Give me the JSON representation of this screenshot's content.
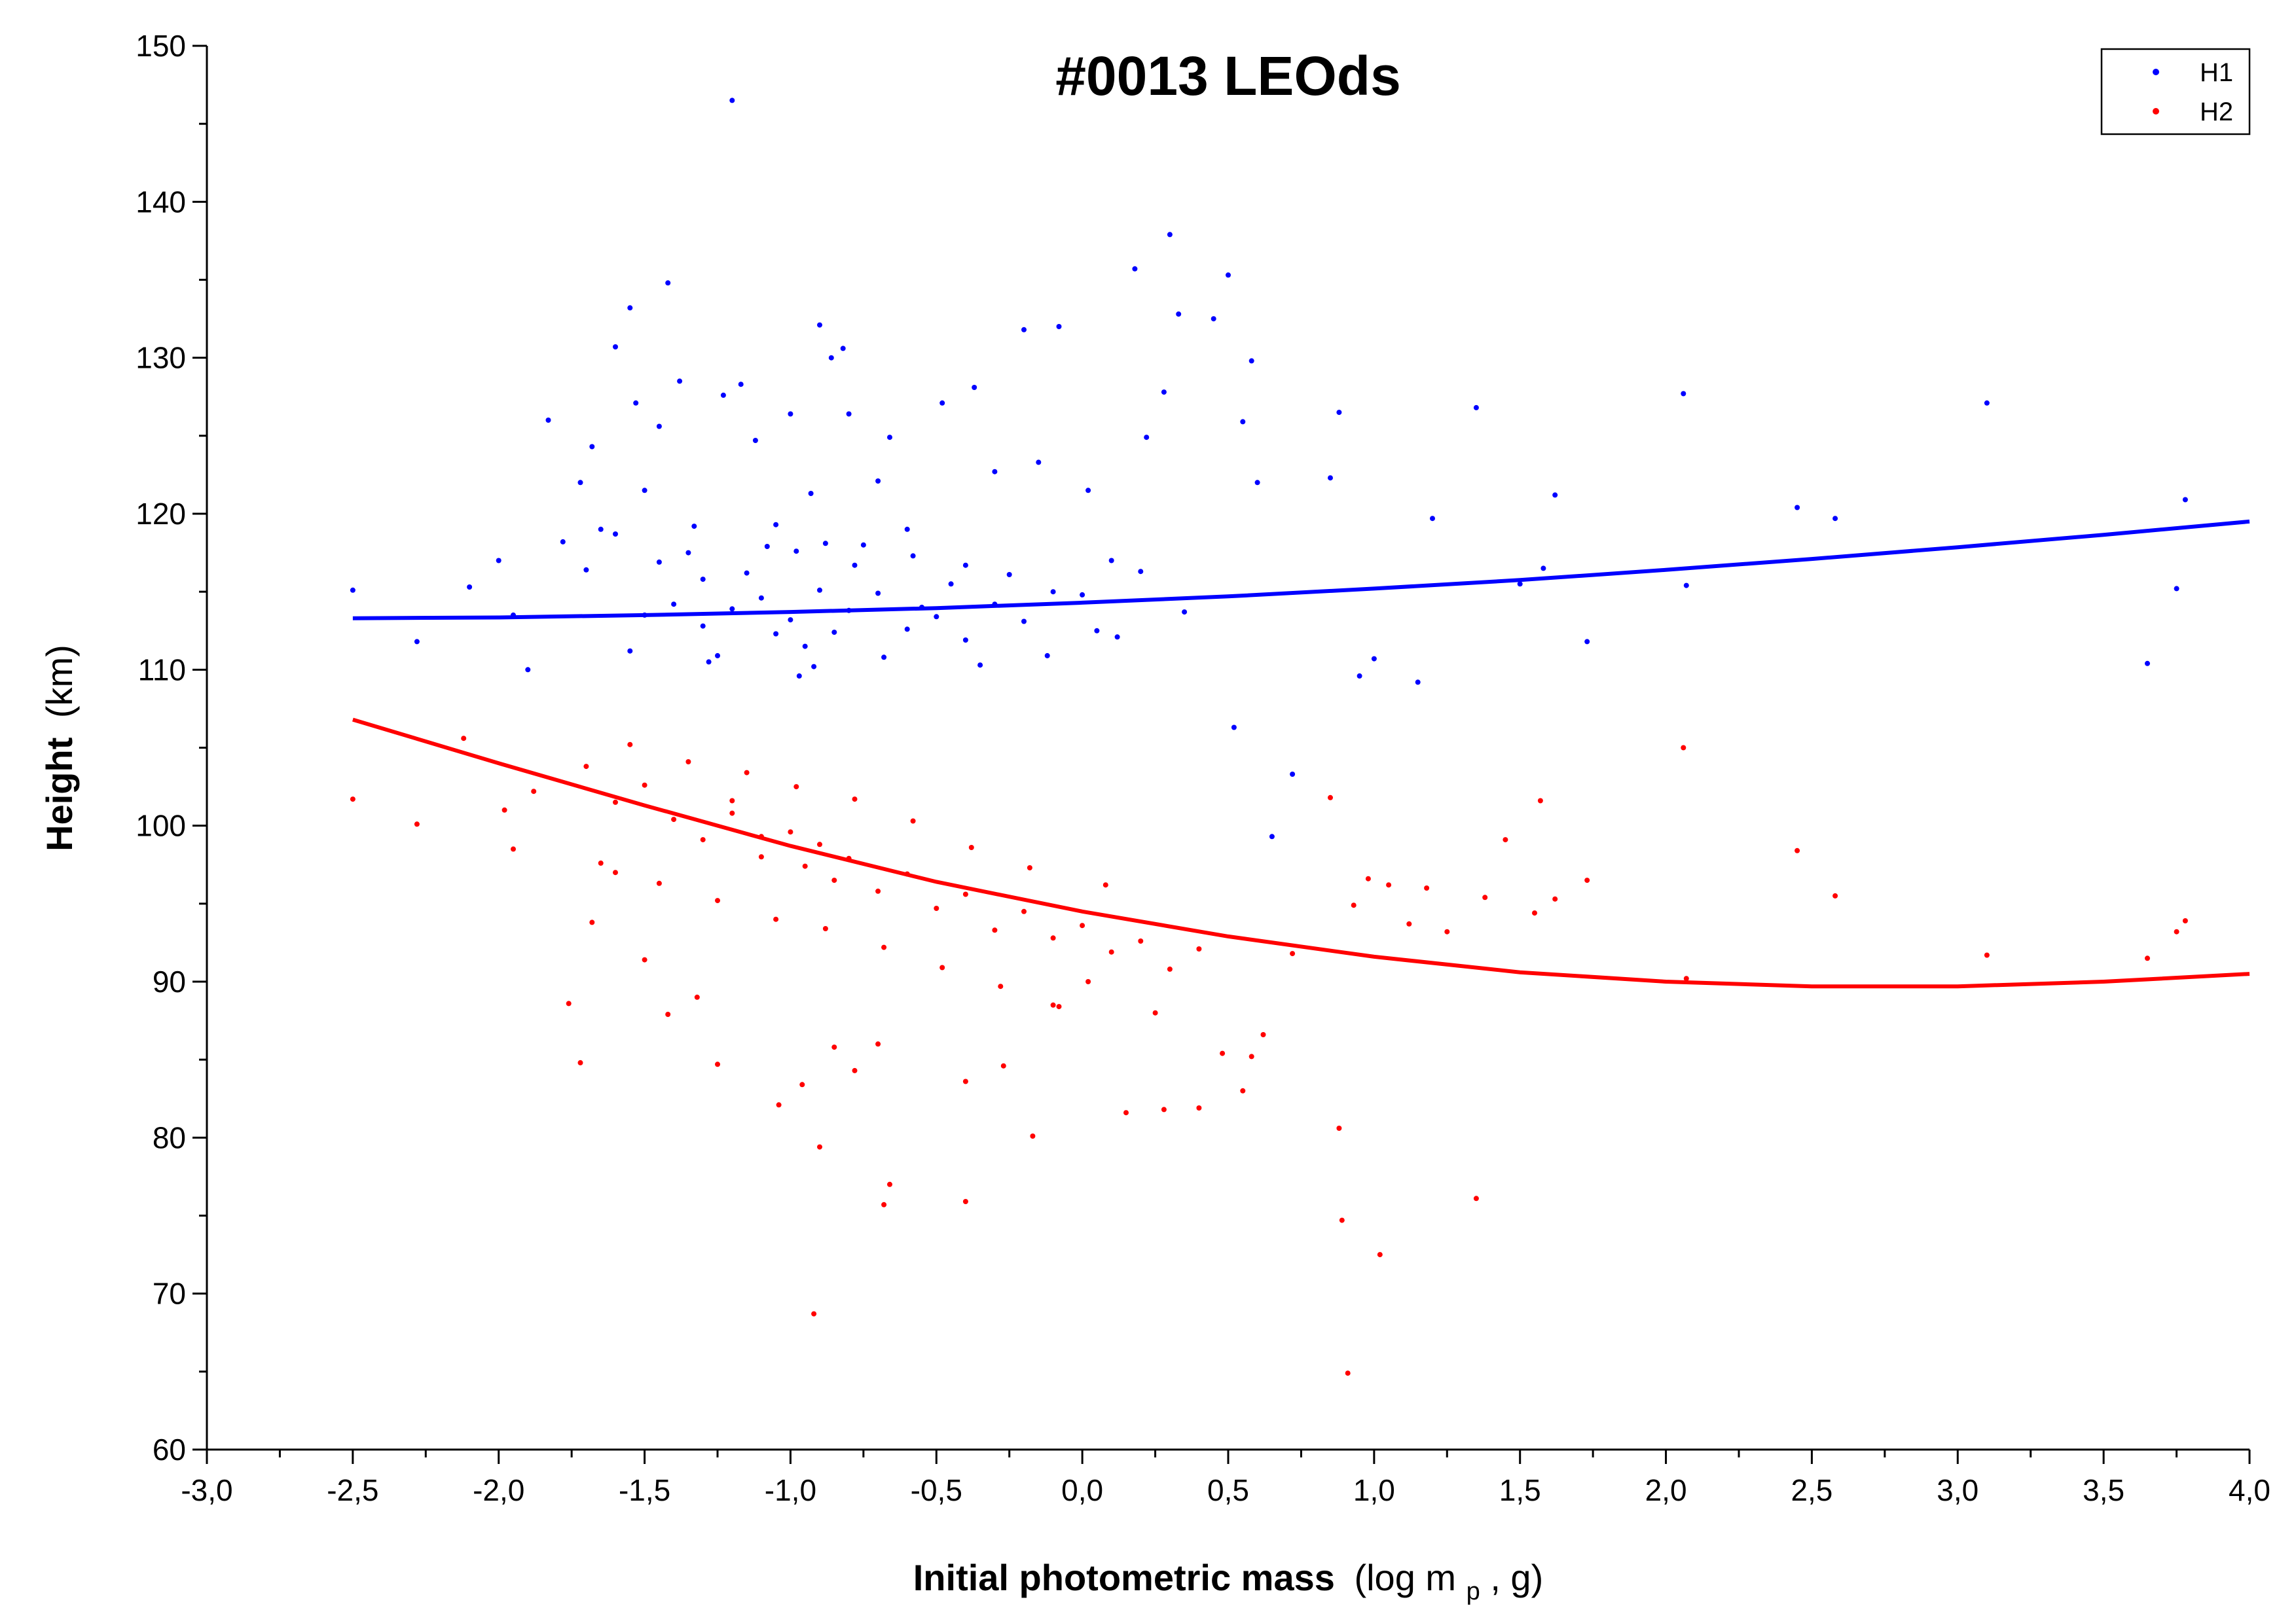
{
  "chart_data": {
    "type": "scatter",
    "title": "#0013 LEOds",
    "xlabel_bold": "Initial photometric mass",
    "xlabel_rest": "(log m",
    "xlabel_sub": "p",
    "xlabel_end": ", g)",
    "ylabel_bold": "Height",
    "ylabel_rest": "(km)",
    "xlim": [
      -3.0,
      4.0
    ],
    "ylim": [
      60,
      150
    ],
    "x_ticks": [
      -3.0,
      -2.5,
      -2.0,
      -1.5,
      -1.0,
      -0.5,
      0.0,
      0.5,
      1.0,
      1.5,
      2.0,
      2.5,
      3.0,
      3.5,
      4.0
    ],
    "x_tick_labels": [
      "-3,0",
      "-2,5",
      "-2,0",
      "-1,5",
      "-1,0",
      "-0,5",
      "0,0",
      "0,5",
      "1,0",
      "1,5",
      "2,0",
      "2,5",
      "3,0",
      "3,5",
      "4,0"
    ],
    "y_ticks": [
      60,
      70,
      80,
      90,
      100,
      110,
      120,
      130,
      140,
      150
    ],
    "y_tick_labels": [
      "60",
      "70",
      "80",
      "90",
      "100",
      "110",
      "120",
      "130",
      "140",
      "150"
    ],
    "grid": false,
    "legend_position": "top-right",
    "series": [
      {
        "name": "H1",
        "color": "#0000ff",
        "points": [
          [
            -2.5,
            115.1
          ],
          [
            -2.28,
            111.8
          ],
          [
            -2.1,
            115.3
          ],
          [
            -2.0,
            117.0
          ],
          [
            -1.95,
            113.5
          ],
          [
            -1.9,
            110.0
          ],
          [
            -1.83,
            126.0
          ],
          [
            -1.78,
            118.2
          ],
          [
            -1.72,
            122.0
          ],
          [
            -1.68,
            124.3
          ],
          [
            -1.65,
            119.0
          ],
          [
            -1.6,
            130.7
          ],
          [
            -1.55,
            133.2
          ],
          [
            -1.53,
            127.1
          ],
          [
            -1.5,
            121.5
          ],
          [
            -1.45,
            125.6
          ],
          [
            -1.42,
            134.8
          ],
          [
            -1.38,
            128.5
          ],
          [
            -1.33,
            119.2
          ],
          [
            -1.3,
            115.8
          ],
          [
            -1.28,
            110.5
          ],
          [
            -1.23,
            127.6
          ],
          [
            -1.2,
            146.5
          ],
          [
            -1.17,
            128.3
          ],
          [
            -1.12,
            124.7
          ],
          [
            -1.08,
            117.9
          ],
          [
            -1.05,
            112.3
          ],
          [
            -1.0,
            126.4
          ],
          [
            -0.97,
            109.6
          ],
          [
            -0.93,
            121.3
          ],
          [
            -0.9,
            132.1
          ],
          [
            -0.86,
            130.0
          ],
          [
            -0.82,
            130.6
          ],
          [
            -0.8,
            126.4
          ],
          [
            -0.75,
            118.0
          ],
          [
            -0.7,
            122.1
          ],
          [
            -0.66,
            124.9
          ],
          [
            -0.6,
            119.0
          ],
          [
            -0.55,
            114.0
          ],
          [
            -0.48,
            127.1
          ],
          [
            -0.4,
            116.7
          ],
          [
            -0.37,
            128.1
          ],
          [
            -0.3,
            122.7
          ],
          [
            -0.2,
            131.8
          ],
          [
            -0.15,
            123.3
          ],
          [
            -0.08,
            132.0
          ],
          [
            0.02,
            121.5
          ],
          [
            0.1,
            117.0
          ],
          [
            0.18,
            135.7
          ],
          [
            0.22,
            124.9
          ],
          [
            0.28,
            127.8
          ],
          [
            0.3,
            137.9
          ],
          [
            0.33,
            132.8
          ],
          [
            0.45,
            132.5
          ],
          [
            0.5,
            135.3
          ],
          [
            0.55,
            125.9
          ],
          [
            0.58,
            129.8
          ],
          [
            0.6,
            122.0
          ],
          [
            0.52,
            106.3
          ],
          [
            0.65,
            99.3
          ],
          [
            0.72,
            103.3
          ],
          [
            0.85,
            122.3
          ],
          [
            0.88,
            126.5
          ],
          [
            0.95,
            109.6
          ],
          [
            1.0,
            110.7
          ],
          [
            1.15,
            109.2
          ],
          [
            1.2,
            119.7
          ],
          [
            1.35,
            126.8
          ],
          [
            1.5,
            115.5
          ],
          [
            1.58,
            116.5
          ],
          [
            1.62,
            121.2
          ],
          [
            1.73,
            111.8
          ],
          [
            2.06,
            127.7
          ],
          [
            2.07,
            115.4
          ],
          [
            2.45,
            120.4
          ],
          [
            2.58,
            119.7
          ],
          [
            3.1,
            127.1
          ],
          [
            3.65,
            110.4
          ],
          [
            3.75,
            115.2
          ],
          [
            3.78,
            120.9
          ],
          [
            -1.5,
            113.5
          ],
          [
            -1.4,
            114.2
          ],
          [
            -1.3,
            112.8
          ],
          [
            -1.2,
            113.9
          ],
          [
            -1.1,
            114.6
          ],
          [
            -1.0,
            113.2
          ],
          [
            -0.95,
            111.5
          ],
          [
            -0.9,
            115.1
          ],
          [
            -0.85,
            112.4
          ],
          [
            -0.8,
            113.8
          ],
          [
            -0.7,
            114.9
          ],
          [
            -0.6,
            112.6
          ],
          [
            -0.5,
            113.4
          ],
          [
            -0.4,
            111.9
          ],
          [
            -0.3,
            114.2
          ],
          [
            -0.2,
            113.1
          ],
          [
            -0.1,
            115.0
          ],
          [
            0.05,
            112.5
          ],
          [
            0.2,
            116.3
          ],
          [
            0.35,
            113.7
          ],
          [
            -1.7,
            116.4
          ],
          [
            -1.6,
            118.7
          ],
          [
            -1.55,
            111.2
          ],
          [
            -1.45,
            116.9
          ],
          [
            -1.35,
            117.5
          ],
          [
            -1.25,
            110.9
          ],
          [
            -1.15,
            116.2
          ],
          [
            -1.05,
            119.3
          ],
          [
            -0.98,
            117.6
          ],
          [
            -0.92,
            110.2
          ],
          [
            -0.88,
            118.1
          ],
          [
            -0.78,
            116.7
          ],
          [
            -0.68,
            110.8
          ],
          [
            -0.58,
            117.3
          ],
          [
            -0.45,
            115.5
          ],
          [
            -0.35,
            110.3
          ],
          [
            -0.25,
            116.1
          ],
          [
            -0.12,
            110.9
          ],
          [
            0.0,
            114.8
          ],
          [
            0.12,
            112.1
          ]
        ]
      },
      {
        "name": "H2",
        "color": "#ff0000",
        "points": [
          [
            -2.5,
            101.7
          ],
          [
            -2.28,
            100.1
          ],
          [
            -2.12,
            105.6
          ],
          [
            -1.98,
            101.0
          ],
          [
            -1.95,
            98.5
          ],
          [
            -1.88,
            102.2
          ],
          [
            -1.76,
            88.6
          ],
          [
            -1.72,
            84.8
          ],
          [
            -1.68,
            93.8
          ],
          [
            -1.6,
            97.0
          ],
          [
            -1.5,
            91.4
          ],
          [
            -1.42,
            87.9
          ],
          [
            -1.32,
            89.0
          ],
          [
            -1.25,
            84.7
          ],
          [
            -1.2,
            101.6
          ],
          [
            -1.1,
            99.3
          ],
          [
            -1.04,
            82.1
          ],
          [
            -0.96,
            83.4
          ],
          [
            -0.9,
            79.4
          ],
          [
            -0.85,
            85.8
          ],
          [
            -0.78,
            84.3
          ],
          [
            -0.7,
            86.0
          ],
          [
            -0.68,
            75.7
          ],
          [
            -0.66,
            77.0
          ],
          [
            -0.92,
            68.7
          ],
          [
            -0.4,
            75.9
          ],
          [
            -0.4,
            83.6
          ],
          [
            -0.27,
            84.6
          ],
          [
            -0.17,
            80.1
          ],
          [
            -0.1,
            88.5
          ],
          [
            0.02,
            90.0
          ],
          [
            0.15,
            81.6
          ],
          [
            0.28,
            81.8
          ],
          [
            0.4,
            81.9
          ],
          [
            0.48,
            85.4
          ],
          [
            0.55,
            83.0
          ],
          [
            0.58,
            85.2
          ],
          [
            0.62,
            86.6
          ],
          [
            0.72,
            91.8
          ],
          [
            0.85,
            101.8
          ],
          [
            0.88,
            80.6
          ],
          [
            0.89,
            74.7
          ],
          [
            0.91,
            64.9
          ],
          [
            0.93,
            94.9
          ],
          [
            0.98,
            96.6
          ],
          [
            1.02,
            72.5
          ],
          [
            1.05,
            96.2
          ],
          [
            1.12,
            93.7
          ],
          [
            1.18,
            96.0
          ],
          [
            1.25,
            93.2
          ],
          [
            1.35,
            76.1
          ],
          [
            1.38,
            95.4
          ],
          [
            1.45,
            99.1
          ],
          [
            1.55,
            94.4
          ],
          [
            1.57,
            101.6
          ],
          [
            1.62,
            95.3
          ],
          [
            1.73,
            96.5
          ],
          [
            2.06,
            105.0
          ],
          [
            2.07,
            90.2
          ],
          [
            2.45,
            98.4
          ],
          [
            2.58,
            95.5
          ],
          [
            3.1,
            91.7
          ],
          [
            3.65,
            91.5
          ],
          [
            3.75,
            93.2
          ],
          [
            3.78,
            93.9
          ],
          [
            -1.6,
            101.5
          ],
          [
            -1.5,
            102.6
          ],
          [
            -1.4,
            100.4
          ],
          [
            -1.3,
            99.1
          ],
          [
            -1.2,
            100.8
          ],
          [
            -1.1,
            98.0
          ],
          [
            -1.0,
            99.6
          ],
          [
            -0.95,
            97.4
          ],
          [
            -0.9,
            98.8
          ],
          [
            -0.85,
            96.5
          ],
          [
            -0.8,
            97.9
          ],
          [
            -0.7,
            95.8
          ],
          [
            -0.6,
            96.9
          ],
          [
            -0.5,
            94.7
          ],
          [
            -0.4,
            95.6
          ],
          [
            -0.3,
            93.3
          ],
          [
            -0.2,
            94.5
          ],
          [
            -0.1,
            92.8
          ],
          [
            0.0,
            93.6
          ],
          [
            0.1,
            91.9
          ],
          [
            0.2,
            92.6
          ],
          [
            0.3,
            90.8
          ],
          [
            0.4,
            92.1
          ],
          [
            -1.7,
            103.8
          ],
          [
            -1.65,
            97.6
          ],
          [
            -1.55,
            105.2
          ],
          [
            -1.45,
            96.3
          ],
          [
            -1.35,
            104.1
          ],
          [
            -1.25,
            95.2
          ],
          [
            -1.15,
            103.4
          ],
          [
            -1.05,
            94.0
          ],
          [
            -0.98,
            102.5
          ],
          [
            -0.88,
            93.4
          ],
          [
            -0.78,
            101.7
          ],
          [
            -0.68,
            92.2
          ],
          [
            -0.58,
            100.3
          ],
          [
            -0.48,
            90.9
          ],
          [
            -0.38,
            98.6
          ],
          [
            -0.28,
            89.7
          ],
          [
            -0.18,
            97.3
          ],
          [
            -0.08,
            88.4
          ],
          [
            0.08,
            96.2
          ],
          [
            0.25,
            88.0
          ]
        ]
      }
    ],
    "fits": [
      {
        "series": "H1",
        "color": "#0000ff",
        "points": [
          [
            -2.5,
            113.3
          ],
          [
            -2.0,
            113.35
          ],
          [
            -1.5,
            113.5
          ],
          [
            -1.0,
            113.7
          ],
          [
            -0.5,
            113.95
          ],
          [
            0.0,
            114.3
          ],
          [
            0.5,
            114.7
          ],
          [
            1.0,
            115.2
          ],
          [
            1.5,
            115.75
          ],
          [
            2.0,
            116.4
          ],
          [
            2.5,
            117.1
          ],
          [
            3.0,
            117.85
          ],
          [
            3.5,
            118.65
          ],
          [
            4.0,
            119.5
          ]
        ]
      },
      {
        "series": "H2",
        "color": "#ff0000",
        "points": [
          [
            -2.5,
            106.8
          ],
          [
            -2.0,
            104.0
          ],
          [
            -1.5,
            101.3
          ],
          [
            -1.0,
            98.7
          ],
          [
            -0.5,
            96.4
          ],
          [
            0.0,
            94.5
          ],
          [
            0.5,
            92.9
          ],
          [
            1.0,
            91.6
          ],
          [
            1.5,
            90.6
          ],
          [
            2.0,
            90.0
          ],
          [
            2.5,
            89.7
          ],
          [
            3.0,
            89.7
          ],
          [
            3.5,
            90.0
          ],
          [
            4.0,
            90.5
          ]
        ]
      }
    ]
  }
}
